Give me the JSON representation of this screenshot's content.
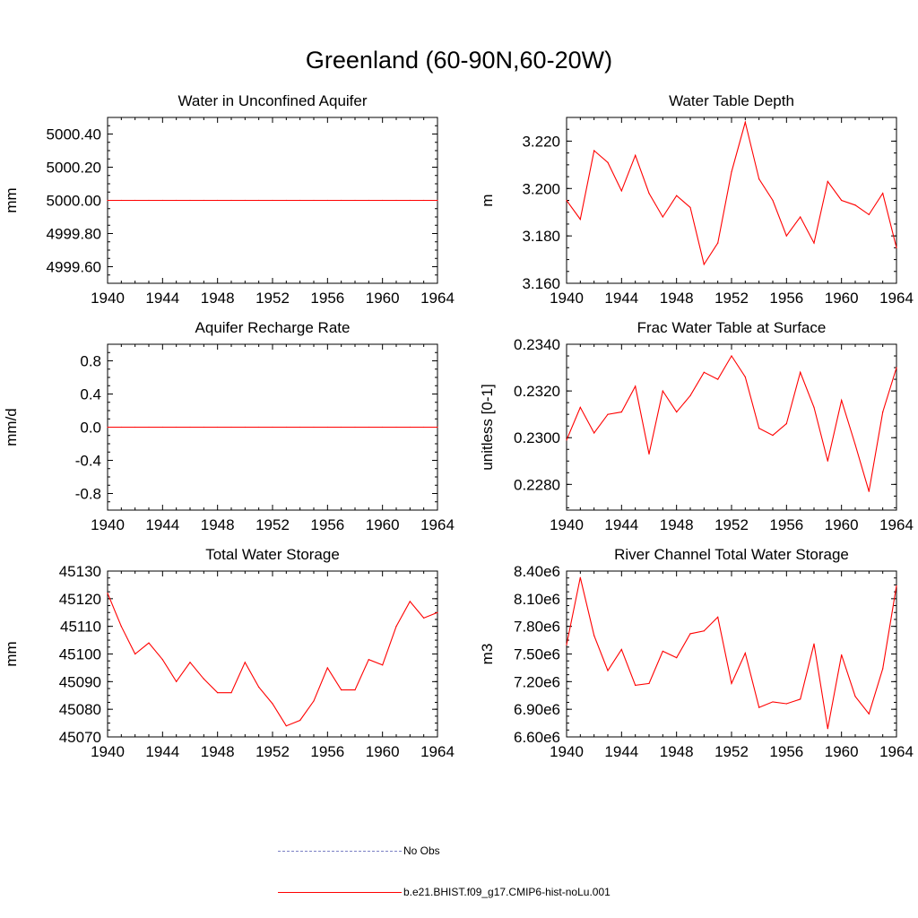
{
  "title": "Greenland (60-90N,60-20W)",
  "colors": {
    "model": "#ff0000",
    "obs": "#7a7fc4"
  },
  "legend": {
    "obs_label": "No Obs",
    "model_label": "b.e21.BHIST.f09_g17.CMIP6-hist-noLu.001"
  },
  "chart_data": [
    {
      "type": "line",
      "title": "Water in Unconfined Aquifer",
      "ylabel": "mm",
      "xlim": [
        1940,
        1964
      ],
      "ylim": [
        4999.5,
        5000.5
      ],
      "xticks": [
        1940,
        1944,
        1948,
        1952,
        1956,
        1960,
        1964
      ],
      "yticks": [
        4999.6,
        4999.8,
        5000.0,
        5000.2,
        5000.4
      ],
      "ytick_labels": [
        "4999.60",
        "4999.80",
        "5000.00",
        "5000.20",
        "5000.40"
      ],
      "x": [
        1940,
        1941,
        1942,
        1943,
        1944,
        1945,
        1946,
        1947,
        1948,
        1949,
        1950,
        1951,
        1952,
        1953,
        1954,
        1955,
        1956,
        1957,
        1958,
        1959,
        1960,
        1961,
        1962,
        1963,
        1964
      ],
      "values": [
        5000,
        5000,
        5000,
        5000,
        5000,
        5000,
        5000,
        5000,
        5000,
        5000,
        5000,
        5000,
        5000,
        5000,
        5000,
        5000,
        5000,
        5000,
        5000,
        5000,
        5000,
        5000,
        5000,
        5000,
        5000
      ]
    },
    {
      "type": "line",
      "title": "Water Table Depth",
      "ylabel": "m",
      "xlim": [
        1940,
        1964
      ],
      "ylim": [
        3.16,
        3.23
      ],
      "xticks": [
        1940,
        1944,
        1948,
        1952,
        1956,
        1960,
        1964
      ],
      "yticks": [
        3.16,
        3.18,
        3.2,
        3.22
      ],
      "ytick_labels": [
        "3.160",
        "3.180",
        "3.200",
        "3.220"
      ],
      "x": [
        1940,
        1941,
        1942,
        1943,
        1944,
        1945,
        1946,
        1947,
        1948,
        1949,
        1950,
        1951,
        1952,
        1953,
        1954,
        1955,
        1956,
        1957,
        1958,
        1959,
        1960,
        1961,
        1962,
        1963,
        1964
      ],
      "values": [
        3.195,
        3.187,
        3.216,
        3.211,
        3.199,
        3.214,
        3.198,
        3.188,
        3.197,
        3.192,
        3.168,
        3.177,
        3.207,
        3.228,
        3.204,
        3.195,
        3.18,
        3.188,
        3.177,
        3.203,
        3.195,
        3.193,
        3.189,
        3.198,
        3.175
      ]
    },
    {
      "type": "line",
      "title": "Aquifer Recharge Rate",
      "ylabel": "mm/d",
      "xlim": [
        1940,
        1964
      ],
      "ylim": [
        -1.0,
        1.0
      ],
      "xticks": [
        1940,
        1944,
        1948,
        1952,
        1956,
        1960,
        1964
      ],
      "yticks": [
        -0.8,
        -0.4,
        0.0,
        0.4,
        0.8
      ],
      "ytick_labels": [
        "-0.8",
        "-0.4",
        "0.0",
        "0.4",
        "0.8"
      ],
      "x": [
        1940,
        1941,
        1942,
        1943,
        1944,
        1945,
        1946,
        1947,
        1948,
        1949,
        1950,
        1951,
        1952,
        1953,
        1954,
        1955,
        1956,
        1957,
        1958,
        1959,
        1960,
        1961,
        1962,
        1963,
        1964
      ],
      "values": [
        0,
        0,
        0,
        0,
        0,
        0,
        0,
        0,
        0,
        0,
        0,
        0,
        0,
        0,
        0,
        0,
        0,
        0,
        0,
        0,
        0,
        0,
        0,
        0,
        0
      ]
    },
    {
      "type": "line",
      "title": "Frac Water Table at Surface",
      "ylabel": "unitless [0-1]",
      "xlim": [
        1940,
        1964
      ],
      "ylim": [
        0.2269,
        0.234
      ],
      "xticks": [
        1940,
        1944,
        1948,
        1952,
        1956,
        1960,
        1964
      ],
      "yticks": [
        0.228,
        0.23,
        0.232,
        0.234
      ],
      "ytick_labels": [
        "0.2280",
        "0.2300",
        "0.2320",
        "0.2340"
      ],
      "x": [
        1940,
        1941,
        1942,
        1943,
        1944,
        1945,
        1946,
        1947,
        1948,
        1949,
        1950,
        1951,
        1952,
        1953,
        1954,
        1955,
        1956,
        1957,
        1958,
        1959,
        1960,
        1961,
        1962,
        1963,
        1964
      ],
      "values": [
        0.2299,
        0.2313,
        0.2302,
        0.231,
        0.2311,
        0.2322,
        0.2293,
        0.232,
        0.2311,
        0.2318,
        0.2328,
        0.2325,
        0.2335,
        0.2326,
        0.2304,
        0.2301,
        0.2306,
        0.2328,
        0.2313,
        0.229,
        0.2316,
        0.2297,
        0.2277,
        0.2311,
        0.233
      ]
    },
    {
      "type": "line",
      "title": "Total Water Storage",
      "ylabel": "mm",
      "xlim": [
        1940,
        1964
      ],
      "ylim": [
        45070,
        45130
      ],
      "xticks": [
        1940,
        1944,
        1948,
        1952,
        1956,
        1960,
        1964
      ],
      "yticks": [
        45070,
        45080,
        45090,
        45100,
        45110,
        45120,
        45130
      ],
      "ytick_labels": [
        "45070",
        "45080",
        "45090",
        "45100",
        "45110",
        "45120",
        "45130"
      ],
      "x": [
        1940,
        1941,
        1942,
        1943,
        1944,
        1945,
        1946,
        1947,
        1948,
        1949,
        1950,
        1951,
        1952,
        1953,
        1954,
        1955,
        1956,
        1957,
        1958,
        1959,
        1960,
        1961,
        1962,
        1963,
        1964
      ],
      "values": [
        45122,
        45110,
        45100,
        45104,
        45098,
        45090,
        45097,
        45091,
        45086,
        45086,
        45097,
        45088,
        45082,
        45074,
        45076,
        45083,
        45095,
        45087,
        45087,
        45098,
        45096,
        45110,
        45119,
        45113,
        45115
      ]
    },
    {
      "type": "line",
      "title": "River Channel Total Water Storage",
      "ylabel": "m3",
      "xlim": [
        1940,
        1964
      ],
      "ylim": [
        6600000,
        8400000
      ],
      "xticks": [
        1940,
        1944,
        1948,
        1952,
        1956,
        1960,
        1964
      ],
      "yticks": [
        6600000,
        6900000,
        7200000,
        7500000,
        7800000,
        8100000,
        8400000
      ],
      "ytick_labels": [
        "6.60e6",
        "6.90e6",
        "7.20e6",
        "7.50e6",
        "7.80e6",
        "8.10e6",
        "8.40e6"
      ],
      "x": [
        1940,
        1941,
        1942,
        1943,
        1944,
        1945,
        1946,
        1947,
        1948,
        1949,
        1950,
        1951,
        1952,
        1953,
        1954,
        1955,
        1956,
        1957,
        1958,
        1959,
        1960,
        1961,
        1962,
        1963,
        1964
      ],
      "values": [
        7600000,
        8330000,
        7700000,
        7320000,
        7550000,
        7160000,
        7180000,
        7530000,
        7460000,
        7720000,
        7750000,
        7900000,
        7180000,
        7510000,
        6920000,
        6980000,
        6960000,
        7010000,
        7610000,
        6690000,
        7490000,
        7040000,
        6850000,
        7340000,
        8240000
      ]
    }
  ]
}
